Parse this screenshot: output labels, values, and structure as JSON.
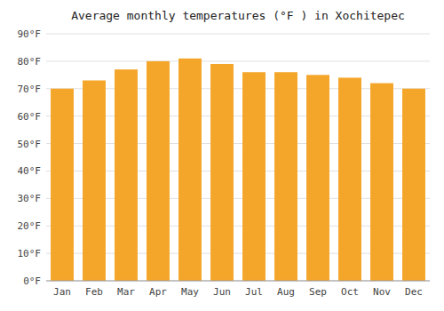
{
  "chart_data": {
    "type": "bar",
    "title": "Average monthly temperatures (°F ) in Xochitepec",
    "categories": [
      "Jan",
      "Feb",
      "Mar",
      "Apr",
      "May",
      "Jun",
      "Jul",
      "Aug",
      "Sep",
      "Oct",
      "Nov",
      "Dec"
    ],
    "values": [
      70,
      73,
      77,
      80,
      81,
      79,
      76,
      76,
      75,
      74,
      72,
      70
    ],
    "color": "#F4A62A",
    "ylim": [
      0,
      90
    ],
    "yticks": [
      {
        "value": 0,
        "label": "0°F"
      },
      {
        "value": 10,
        "label": "10°F"
      },
      {
        "value": 20,
        "label": "20°F"
      },
      {
        "value": 30,
        "label": "30°F"
      },
      {
        "value": 40,
        "label": "40°F"
      },
      {
        "value": 50,
        "label": "50°F"
      },
      {
        "value": 60,
        "label": "60°F"
      },
      {
        "value": 70,
        "label": "70°F"
      },
      {
        "value": 80,
        "label": "80°F"
      },
      {
        "value": 90,
        "label": "90°F"
      }
    ],
    "grid": true
  }
}
